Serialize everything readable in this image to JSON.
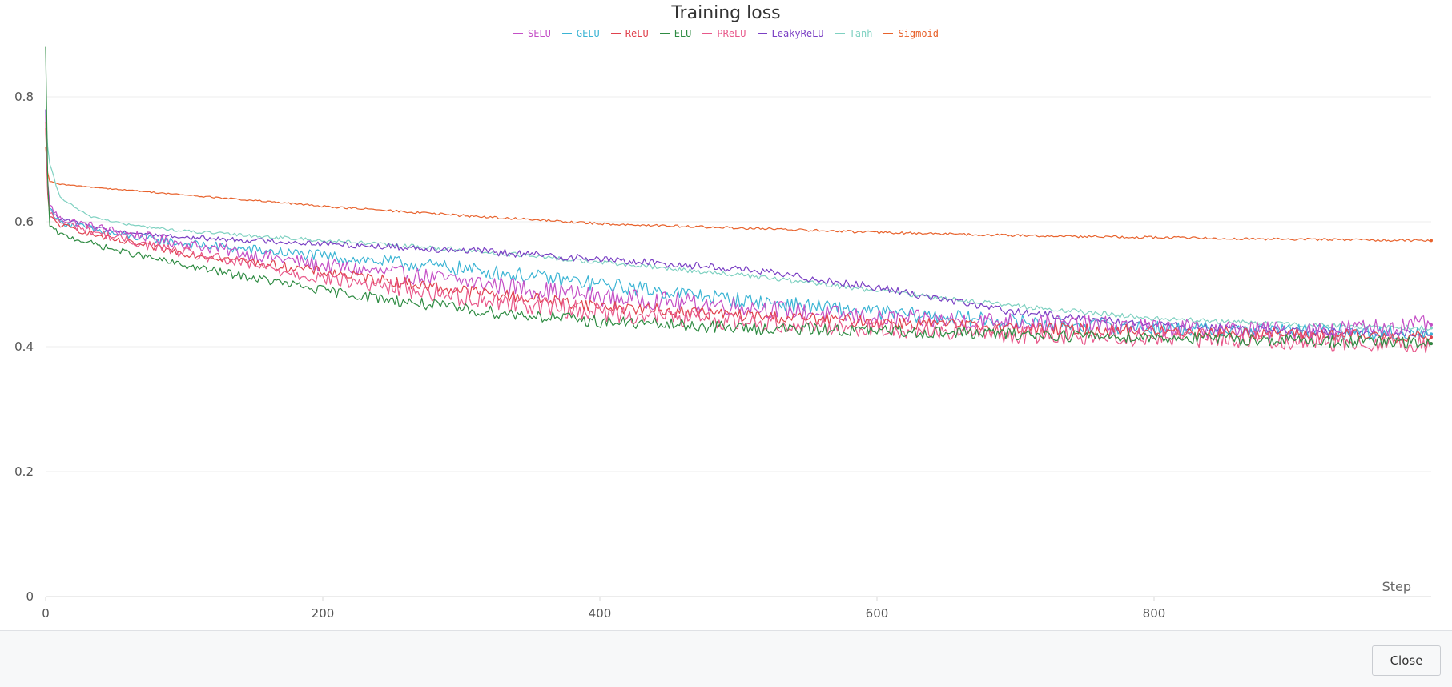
{
  "chart_data": {
    "type": "line",
    "title": "Training loss",
    "xlabel": "Step",
    "ylabel": "",
    "xlim": [
      0,
      1000
    ],
    "ylim": [
      0,
      0.88
    ],
    "x_ticks": [
      "0",
      "200",
      "400",
      "600",
      "800"
    ],
    "y_ticks": [
      "0",
      "0.2",
      "0.4",
      "0.6",
      "0.8"
    ],
    "grid": "horizontal",
    "legend_position": "top",
    "series": [
      {
        "name": "SELU",
        "color": "#c44fc6",
        "x": [
          0,
          2,
          10,
          50,
          100,
          200,
          300,
          400,
          500,
          600,
          700,
          800,
          900,
          1000
        ],
        "y": [
          0.77,
          0.63,
          0.605,
          0.585,
          0.565,
          0.53,
          0.505,
          0.48,
          0.465,
          0.445,
          0.44,
          0.43,
          0.425,
          0.435
        ],
        "noise": 0.015
      },
      {
        "name": "GELU",
        "color": "#3bb4d4",
        "x": [
          0,
          2,
          10,
          50,
          100,
          200,
          300,
          400,
          500,
          600,
          700,
          800,
          900,
          1000
        ],
        "y": [
          0.76,
          0.625,
          0.6,
          0.58,
          0.565,
          0.545,
          0.525,
          0.5,
          0.475,
          0.455,
          0.44,
          0.43,
          0.425,
          0.42
        ],
        "noise": 0.012
      },
      {
        "name": "ReLU",
        "color": "#e0424e",
        "x": [
          0,
          2,
          10,
          50,
          100,
          200,
          300,
          400,
          500,
          600,
          700,
          800,
          900,
          1000
        ],
        "y": [
          0.75,
          0.61,
          0.595,
          0.57,
          0.55,
          0.52,
          0.49,
          0.465,
          0.45,
          0.44,
          0.43,
          0.425,
          0.42,
          0.415
        ],
        "noise": 0.01
      },
      {
        "name": "ELU",
        "color": "#2e8b42",
        "x": [
          0,
          2,
          10,
          50,
          100,
          200,
          300,
          400,
          500,
          600,
          700,
          800,
          900,
          1000
        ],
        "y": [
          0.88,
          0.595,
          0.58,
          0.555,
          0.53,
          0.49,
          0.46,
          0.44,
          0.43,
          0.425,
          0.42,
          0.415,
          0.41,
          0.405
        ],
        "noise": 0.01
      },
      {
        "name": "PReLU",
        "color": "#e8588a",
        "x": [
          0,
          2,
          10,
          50,
          100,
          200,
          300,
          400,
          500,
          600,
          700,
          800,
          900,
          1000
        ],
        "y": [
          0.76,
          0.615,
          0.6,
          0.575,
          0.55,
          0.51,
          0.48,
          0.455,
          0.44,
          0.43,
          0.42,
          0.415,
          0.41,
          0.405
        ],
        "noise": 0.015
      },
      {
        "name": "LeakyReLU",
        "color": "#7a3fc4",
        "x": [
          0,
          2,
          10,
          50,
          100,
          200,
          300,
          400,
          500,
          600,
          700,
          800,
          900,
          1000
        ],
        "y": [
          0.78,
          0.62,
          0.605,
          0.585,
          0.575,
          0.565,
          0.555,
          0.54,
          0.525,
          0.495,
          0.455,
          0.435,
          0.425,
          0.42
        ],
        "noise": 0.006
      },
      {
        "name": "Tanh",
        "color": "#7fd1c1",
        "x": [
          0,
          2,
          10,
          30,
          60,
          100,
          200,
          300,
          400,
          500,
          600,
          700,
          800,
          900,
          1000
        ],
        "y": [
          0.78,
          0.7,
          0.64,
          0.61,
          0.595,
          0.585,
          0.57,
          0.555,
          0.535,
          0.515,
          0.49,
          0.465,
          0.445,
          0.435,
          0.43
        ],
        "noise": 0.004
      },
      {
        "name": "Sigmoid",
        "color": "#e8622c",
        "x": [
          0,
          2,
          10,
          100,
          200,
          300,
          400,
          500,
          600,
          700,
          800,
          900,
          1000
        ],
        "y": [
          0.72,
          0.665,
          0.66,
          0.643,
          0.625,
          0.61,
          0.597,
          0.59,
          0.583,
          0.578,
          0.575,
          0.572,
          0.57
        ],
        "noise": 0.002
      }
    ]
  },
  "footer": {
    "close_label": "Close"
  }
}
